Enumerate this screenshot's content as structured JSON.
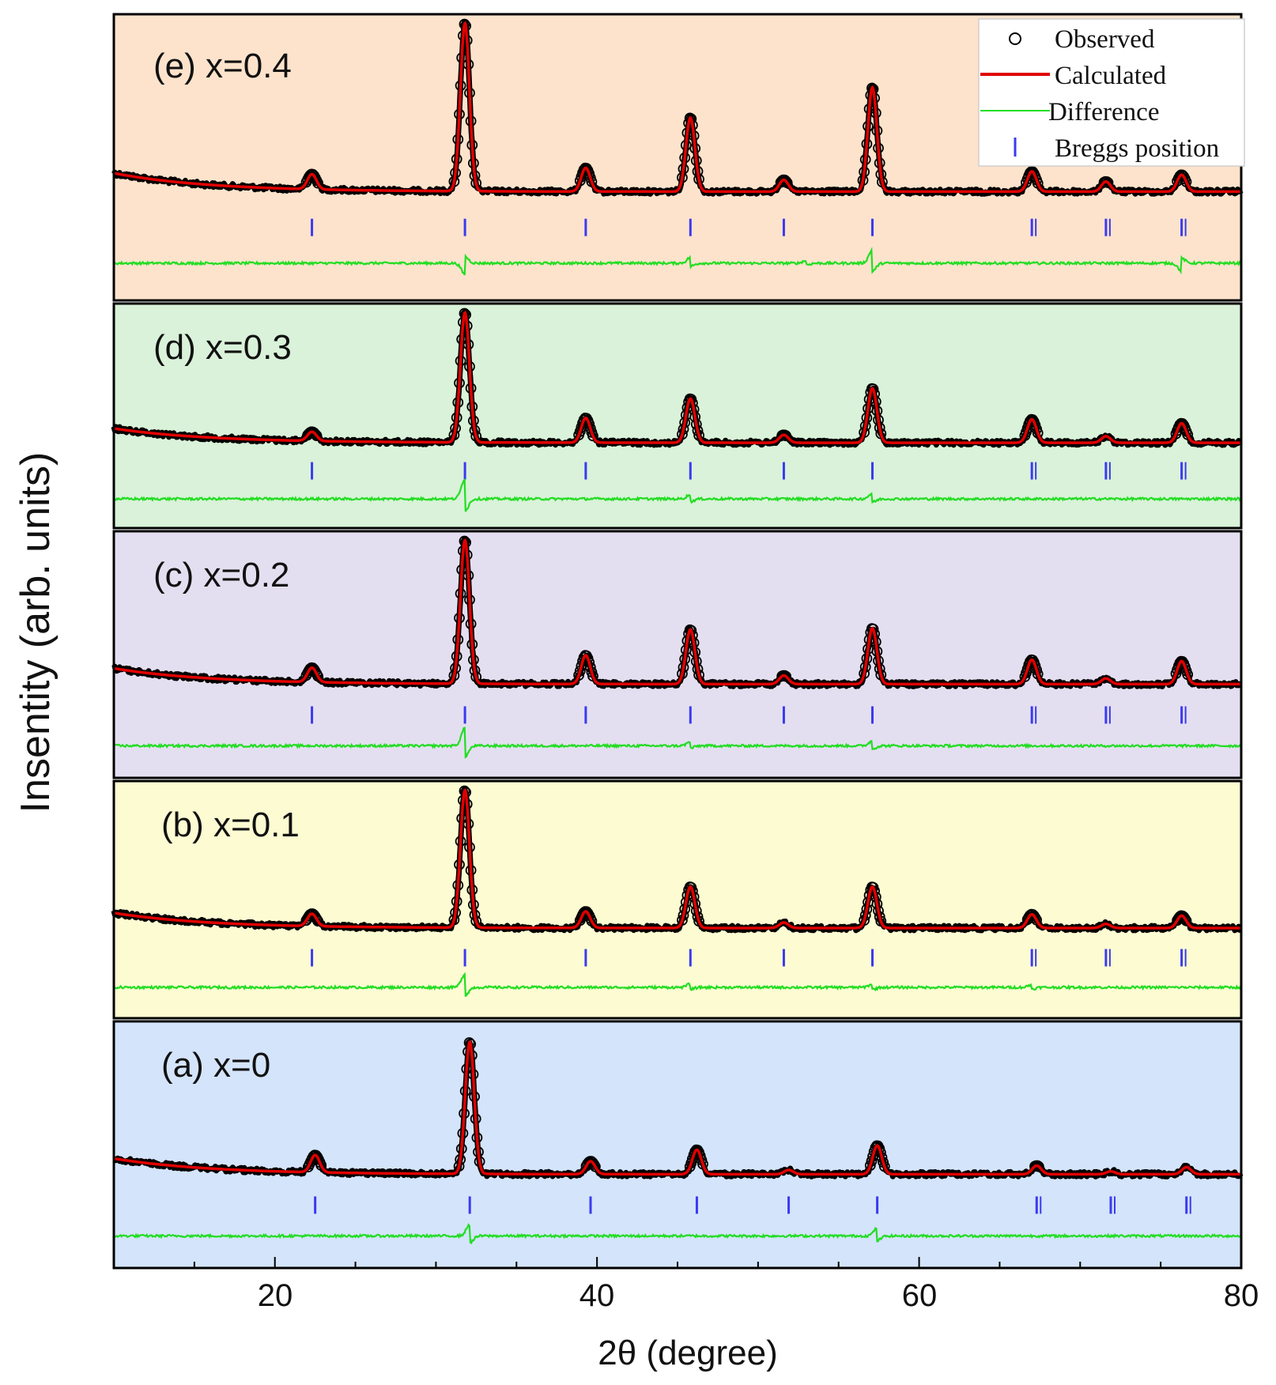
{
  "chart_data": {
    "type": "line",
    "xlabel": "2θ (degree)",
    "ylabel": "Insentity (arb. units)",
    "xlim": [
      10,
      80
    ],
    "xticks": [
      "20",
      "40",
      "60",
      "80"
    ],
    "legend": {
      "placement": "top-right",
      "observed": "Observed",
      "calculated": "Calculated",
      "difference": "Difference",
      "bragg": "Breggs position"
    },
    "colors": {
      "observed": "#000000",
      "calculated": "#e00000",
      "difference": "#22dd22",
      "bragg": "#3a3af0"
    },
    "panels": [
      {
        "label": "(e) x=0.4",
        "background": "#fde3cc",
        "shift": 0.0,
        "peaks": [
          {
            "x": 22.3,
            "y": 0.09
          },
          {
            "x": 31.8,
            "y": 1.0
          },
          {
            "x": 39.3,
            "y": 0.14
          },
          {
            "x": 45.8,
            "y": 0.44
          },
          {
            "x": 51.6,
            "y": 0.07
          },
          {
            "x": 57.1,
            "y": 0.62
          },
          {
            "x": 67.0,
            "y": 0.12
          },
          {
            "x": 71.6,
            "y": 0.06
          },
          {
            "x": 76.3,
            "y": 0.1
          }
        ],
        "bragg_positions": [
          22.3,
          31.8,
          39.3,
          45.8,
          51.6,
          57.1,
          67.0,
          71.6,
          76.3
        ],
        "diff_features": [
          {
            "x": 31.8,
            "amp": -0.5
          },
          {
            "x": 45.8,
            "amp": 0.25
          },
          {
            "x": 57.1,
            "amp": 0.6
          },
          {
            "x": 76.3,
            "amp": -0.35
          },
          {
            "x": 53.0,
            "amp": 0.12
          }
        ]
      },
      {
        "label": "(d) x=0.3",
        "background": "#d9f2d9",
        "shift": -0.1,
        "peaks": [
          {
            "x": 22.3,
            "y": 0.07
          },
          {
            "x": 31.8,
            "y": 1.0
          },
          {
            "x": 39.3,
            "y": 0.19
          },
          {
            "x": 45.8,
            "y": 0.34
          },
          {
            "x": 51.6,
            "y": 0.06
          },
          {
            "x": 57.1,
            "y": 0.42
          },
          {
            "x": 67.0,
            "y": 0.18
          },
          {
            "x": 71.6,
            "y": 0.05
          },
          {
            "x": 76.3,
            "y": 0.15
          }
        ],
        "bragg_positions": [
          22.3,
          31.8,
          39.3,
          45.8,
          51.6,
          57.1,
          67.0,
          71.6,
          76.3
        ],
        "diff_features": [
          {
            "x": 31.8,
            "amp": 0.9
          },
          {
            "x": 45.8,
            "amp": 0.2
          },
          {
            "x": 57.1,
            "amp": 0.25
          }
        ]
      },
      {
        "label": "(c) x=0.2",
        "background": "#e4dff0",
        "shift": 0.0,
        "peaks": [
          {
            "x": 22.3,
            "y": 0.1
          },
          {
            "x": 31.8,
            "y": 1.0
          },
          {
            "x": 39.3,
            "y": 0.2
          },
          {
            "x": 45.8,
            "y": 0.38
          },
          {
            "x": 51.6,
            "y": 0.06
          },
          {
            "x": 57.1,
            "y": 0.39
          },
          {
            "x": 67.0,
            "y": 0.17
          },
          {
            "x": 71.6,
            "y": 0.04
          },
          {
            "x": 76.3,
            "y": 0.16
          }
        ],
        "bragg_positions": [
          22.3,
          31.8,
          39.3,
          45.8,
          51.6,
          57.1,
          67.0,
          71.6,
          76.3
        ],
        "diff_features": [
          {
            "x": 31.8,
            "amp": 0.8
          },
          {
            "x": 45.8,
            "amp": 0.18
          },
          {
            "x": 57.1,
            "amp": 0.22
          }
        ]
      },
      {
        "label": "(b) x=0.1",
        "background": "#fdfbd2",
        "shift": 0.0,
        "peaks": [
          {
            "x": 22.3,
            "y": 0.09
          },
          {
            "x": 31.8,
            "y": 1.0
          },
          {
            "x": 39.3,
            "y": 0.12
          },
          {
            "x": 45.8,
            "y": 0.3
          },
          {
            "x": 51.6,
            "y": 0.04
          },
          {
            "x": 57.1,
            "y": 0.3
          },
          {
            "x": 67.0,
            "y": 0.1
          },
          {
            "x": 71.6,
            "y": 0.03
          },
          {
            "x": 76.3,
            "y": 0.09
          }
        ],
        "bragg_positions": [
          22.3,
          31.8,
          39.3,
          45.8,
          51.6,
          57.1,
          67.0,
          71.6,
          76.3
        ],
        "diff_features": [
          {
            "x": 31.8,
            "amp": 0.6
          },
          {
            "x": 45.8,
            "amp": 0.15
          },
          {
            "x": 57.1,
            "amp": 0.15
          },
          {
            "x": 67.0,
            "amp": 0.12
          }
        ]
      },
      {
        "label": "(a) x=0",
        "background": "#d4e4fb",
        "shift": 0.3,
        "peaks": [
          {
            "x": 22.5,
            "y": 0.12
          },
          {
            "x": 32.1,
            "y": 0.92
          },
          {
            "x": 39.6,
            "y": 0.09
          },
          {
            "x": 46.2,
            "y": 0.17
          },
          {
            "x": 51.9,
            "y": 0.03
          },
          {
            "x": 57.4,
            "y": 0.2
          },
          {
            "x": 67.3,
            "y": 0.06
          },
          {
            "x": 71.9,
            "y": 0.02
          },
          {
            "x": 76.6,
            "y": 0.05
          }
        ],
        "bragg_positions": [
          22.5,
          32.1,
          39.6,
          46.2,
          51.9,
          57.4,
          67.3,
          71.9,
          76.6
        ],
        "diff_features": [
          {
            "x": 32.1,
            "amp": 0.5
          },
          {
            "x": 57.4,
            "amp": 0.35
          }
        ]
      }
    ]
  }
}
